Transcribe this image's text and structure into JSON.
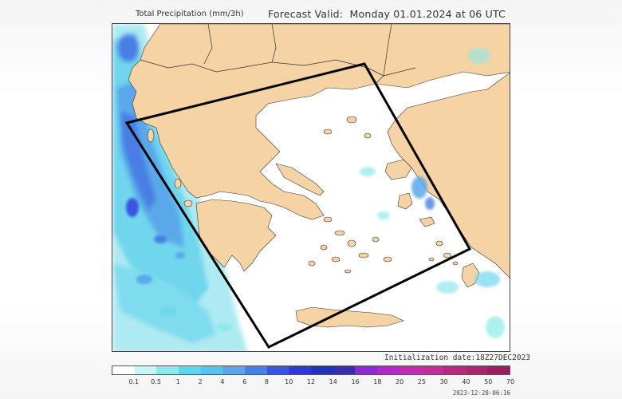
{
  "header": {
    "title": "Total Precipitation (mm/3h)",
    "forecast_label": "Forecast Valid:",
    "forecast_value": "Monday 01.01.2024 at 06 UTC"
  },
  "map": {
    "region": "Greece",
    "colors": {
      "land": "#f5d3a4",
      "sea": "#ffffff",
      "border": "#333333",
      "domain_outline": "#000000"
    }
  },
  "init_label": "Initialization date:18Z27DEC2023",
  "legend": {
    "labels": [
      "0.1",
      "0.5",
      "1",
      "2",
      "4",
      "6",
      "8",
      "10",
      "12",
      "14",
      "16",
      "18",
      "20",
      "25",
      "30",
      "40",
      "50",
      "70"
    ],
    "colors": [
      "#ffffff",
      "#c8f5f5",
      "#8ceaea",
      "#5ed6ee",
      "#57c4ee",
      "#5fa5ec",
      "#4a80e6",
      "#3a55e2",
      "#2c3bd6",
      "#2233b8",
      "#3a2ea8",
      "#8a2ad0",
      "#b02ac8",
      "#c02cb0",
      "#c42c98",
      "#b82a80",
      "#a8266e",
      "#982060"
    ]
  },
  "timestamp": "2023-12-28-06:16"
}
